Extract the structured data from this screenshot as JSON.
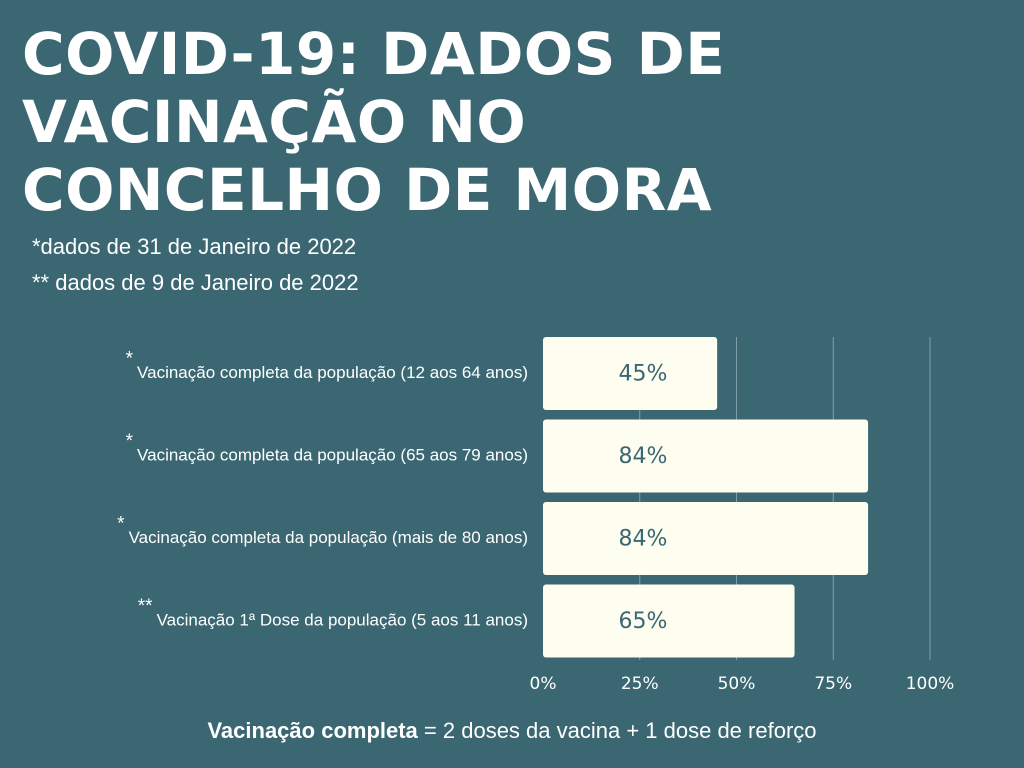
{
  "title": {
    "lines": [
      "COVID-19: DADOS DE",
      "VACINAÇÃO NO",
      "CONCELHO DE MORA"
    ]
  },
  "notes": [
    "*dados de 31 de Janeiro de 2022",
    "** dados de 9 de Janeiro de 2022"
  ],
  "footnote": {
    "bold": "Vacinação completa",
    "rest": " = 2 doses da vacina + 1 dose de reforço"
  },
  "colors": {
    "background": "#3b6773",
    "bar": "#fdfdf0",
    "value_text": "#3b6773",
    "text": "#ffffff",
    "grid": "#7f9fa8"
  },
  "chart_data": {
    "type": "bar",
    "orientation": "horizontal",
    "categories": [
      "Vacinação completa da população (12 aos 64 anos)",
      "Vacinação completa  da população (65 aos 79 anos)",
      "Vacinação completa da população (mais de 80 anos)",
      "Vacinação 1ª Dose da população (5 aos 11 anos)"
    ],
    "markers": [
      "*",
      "*",
      "*",
      "**"
    ],
    "values": [
      45,
      84,
      84,
      65
    ],
    "value_labels": [
      "45%",
      "84%",
      "84%",
      "65%"
    ],
    "xlim": [
      0,
      100
    ],
    "xticks": [
      0,
      25,
      50,
      75,
      100
    ],
    "xtick_labels": [
      "0%",
      "25%",
      "50%",
      "75%",
      "100%"
    ],
    "grid": true
  }
}
